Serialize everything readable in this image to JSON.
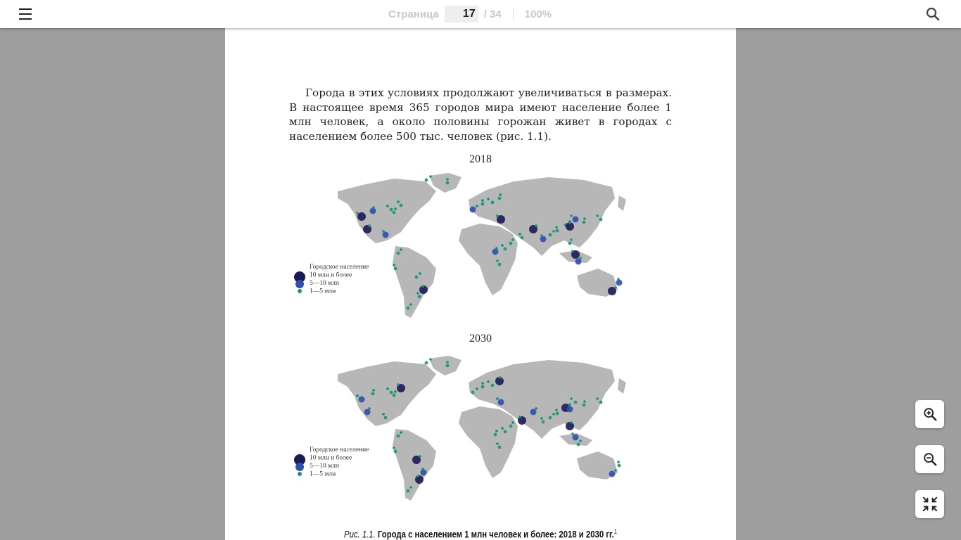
{
  "toolbar": {
    "page_label": "Страница",
    "current_page": "17",
    "total_pages": "/ 34",
    "zoom": "100%"
  },
  "document": {
    "paragraph": "Города в этих условиях продолжают увеличиваться в размерах. В настоящее время 365 городов мира имеют население более 1 млн человек, а около половины горожан живет в городах с населением более 500 тыс. человек (рис. 1.1).",
    "maps": [
      {
        "year": "2018",
        "legend": {
          "title": "Городское население",
          "items": [
            "10 млн и более",
            "5—10 млн",
            "1—5 млн"
          ]
        }
      },
      {
        "year": "2030",
        "legend": {
          "title": "Городское население",
          "items": [
            "10 млн и более",
            "5—10 млн",
            "1—5 млн"
          ]
        }
      }
    ],
    "caption": {
      "prefix": "Рис. 1.1.",
      "text": "Города с населением 1 млн человек и более: 2018 и 2030 гг.",
      "footnote": "1"
    }
  },
  "colors": {
    "large": "#1c1a55",
    "medium": "#2f4fb0",
    "small": "#15957a",
    "land": "#b7b7b7"
  },
  "icons": {
    "menu": "hamburger-menu-icon",
    "search": "search-icon",
    "zoom_in": "zoom-in-icon",
    "zoom_out": "zoom-out-icon",
    "fit": "exit-fullscreen-icon"
  }
}
